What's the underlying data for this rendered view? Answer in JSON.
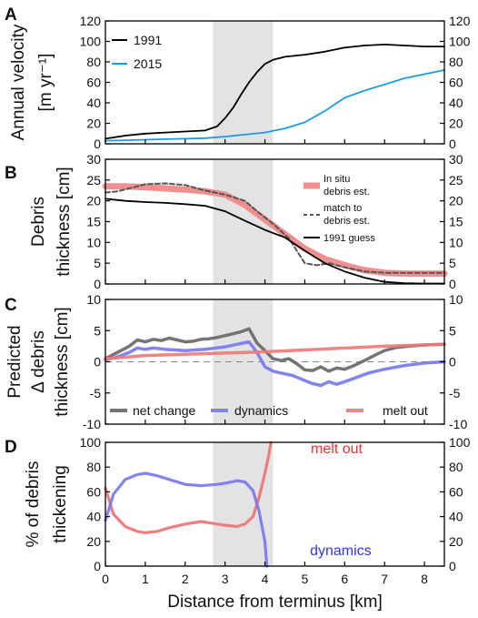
{
  "chart_data": [
    {
      "panel": "A",
      "type": "line",
      "ylabel_lines": [
        "Annual velocity",
        "[m yr⁻¹]"
      ],
      "xlim": [
        0,
        8.5
      ],
      "ylim": [
        0,
        120
      ],
      "yticks": [
        0,
        20,
        40,
        60,
        80,
        100,
        120
      ],
      "shaded_x": [
        2.7,
        4.2
      ],
      "legend_position": "top-left",
      "series": [
        {
          "name": "1991",
          "color": "#000000",
          "x": [
            0,
            0.5,
            1,
            1.5,
            2,
            2.5,
            2.8,
            3,
            3.2,
            3.4,
            3.6,
            3.8,
            4.0,
            4.2,
            4.5,
            5,
            5.5,
            6,
            6.5,
            7,
            7.5,
            8,
            8.5
          ],
          "y": [
            5,
            8,
            10,
            11,
            12,
            13,
            17,
            25,
            35,
            48,
            60,
            70,
            78,
            82,
            85,
            87,
            90,
            94,
            96,
            97,
            96,
            95,
            95
          ]
        },
        {
          "name": "2015",
          "color": "#1a9be6",
          "x": [
            0,
            0.5,
            1,
            1.5,
            2,
            2.5,
            3,
            3.5,
            4,
            4.5,
            5,
            5.5,
            6,
            6.5,
            7,
            7.5,
            8,
            8.5
          ],
          "y": [
            3,
            3.5,
            4,
            4.5,
            5,
            5.5,
            7,
            9,
            11,
            15,
            21,
            32,
            45,
            52,
            58,
            64,
            68,
            72
          ]
        }
      ]
    },
    {
      "panel": "B",
      "type": "line",
      "ylabel_lines": [
        "Debris",
        "thickness [cm]"
      ],
      "xlim": [
        0,
        8.5
      ],
      "ylim": [
        0,
        30
      ],
      "yticks": [
        0,
        5,
        10,
        15,
        20,
        25,
        30
      ],
      "shaded_x": [
        2.7,
        4.2
      ],
      "legend_position": "right",
      "series": [
        {
          "name": "In situ debris est.",
          "legend_lines": [
            "In situ",
            "debris est."
          ],
          "color": "#f08f8f",
          "style": "thick",
          "x": [
            0,
            0.5,
            1,
            1.5,
            2,
            2.5,
            3,
            3.5,
            4,
            4.5,
            5,
            5.5,
            6,
            6.5,
            7,
            7.5,
            8,
            8.5
          ],
          "y": [
            23.5,
            23.5,
            23.3,
            23,
            22.7,
            22.3,
            21.5,
            19,
            15.5,
            12,
            8.5,
            6,
            4.5,
            3.3,
            2.7,
            2.5,
            2.5,
            2.5
          ]
        },
        {
          "name": "match to debris est.",
          "legend_lines": [
            "match to",
            "debris est."
          ],
          "color": "#555555",
          "style": "dashed",
          "x": [
            0,
            0.3,
            0.6,
            1,
            1.5,
            2,
            2.5,
            3,
            3.5,
            3.8,
            4.2,
            4.6,
            5,
            5.3,
            5.6,
            6,
            6.5,
            7,
            7.5,
            8,
            8.5
          ],
          "y": [
            22,
            22.3,
            23,
            24,
            24.2,
            23.8,
            22.5,
            21.5,
            20,
            17.5,
            14.5,
            11,
            5,
            4.5,
            5,
            4,
            3,
            2.7,
            2.7,
            2.7,
            2.7
          ]
        },
        {
          "name": "1991 guess",
          "legend_lines": [
            "1991 guess"
          ],
          "color": "#000000",
          "style": "solid",
          "x": [
            0,
            0.5,
            1,
            1.5,
            2,
            2.5,
            3,
            3.5,
            4,
            4.5,
            5,
            5.5,
            6,
            6.5,
            7,
            7.5,
            8,
            8.5
          ],
          "y": [
            20.5,
            20,
            19.7,
            19.5,
            19.2,
            18.8,
            17.5,
            15.2,
            13,
            11.2,
            8,
            5,
            3,
            1.5,
            0.5,
            0.2,
            0.1,
            0.1
          ]
        }
      ]
    },
    {
      "panel": "C",
      "type": "line",
      "ylabel_lines": [
        "Predicted",
        "Δ debris",
        "thickness [cm]"
      ],
      "xlim": [
        0,
        8.5
      ],
      "ylim": [
        -10,
        10
      ],
      "yticks": [
        -10,
        -5,
        0,
        5,
        10
      ],
      "shaded_x": [
        2.7,
        4.2
      ],
      "legend_position": "bottom",
      "series": [
        {
          "name": "net change",
          "color": "#666666",
          "x": [
            0,
            0.3,
            0.6,
            0.8,
            1.0,
            1.2,
            1.4,
            1.6,
            1.8,
            2.0,
            2.2,
            2.4,
            2.6,
            2.8,
            3.0,
            3.2,
            3.4,
            3.6,
            3.8,
            4.0,
            4.2,
            4.4,
            4.6,
            4.8,
            5.0,
            5.2,
            5.4,
            5.6,
            5.8,
            6.0,
            6.2,
            6.5,
            6.8,
            7.0,
            7.3,
            7.6,
            8.0,
            8.5
          ],
          "y": [
            0.5,
            1.5,
            2.5,
            3.5,
            3.2,
            3.6,
            3.4,
            3.8,
            3.5,
            3.2,
            3.3,
            3.6,
            3.7,
            3.9,
            4.2,
            4.5,
            4.8,
            5.3,
            3.0,
            1.8,
            0.5,
            0.2,
            0.5,
            -0.3,
            -1.3,
            -1.4,
            -0.8,
            -1.5,
            -1.0,
            -1.2,
            -0.7,
            0.2,
            1.2,
            1.8,
            2.3,
            2.5,
            2.7,
            2.8
          ]
        },
        {
          "name": "dynamics",
          "color": "#7777ee",
          "x": [
            0,
            0.3,
            0.6,
            0.8,
            1.0,
            1.2,
            1.5,
            2.0,
            2.5,
            3.0,
            3.3,
            3.6,
            3.8,
            4.0,
            4.2,
            4.4,
            4.7,
            5.0,
            5.2,
            5.4,
            5.6,
            5.8,
            6.0,
            6.3,
            6.6,
            7.0,
            7.5,
            8.0,
            8.5
          ],
          "y": [
            0.3,
            0.8,
            1.5,
            2.2,
            2.0,
            2.2,
            2.0,
            1.8,
            2.0,
            2.4,
            2.8,
            3.2,
            1.5,
            -0.8,
            -1.5,
            -1.8,
            -2.2,
            -3.0,
            -3.5,
            -3.8,
            -3.2,
            -3.6,
            -3.2,
            -2.5,
            -1.8,
            -1.2,
            -0.6,
            -0.2,
            0.0
          ]
        },
        {
          "name": "melt out",
          "color": "#f07878",
          "x": [
            0,
            1,
            2,
            3,
            4,
            5,
            6,
            7,
            8,
            8.5
          ],
          "y": [
            0.5,
            1.0,
            1.2,
            1.4,
            1.6,
            1.9,
            2.2,
            2.5,
            2.7,
            2.8
          ]
        }
      ],
      "zero_line": "dashed"
    },
    {
      "panel": "D",
      "type": "line",
      "xlabel": "Distance from terminus [km]",
      "ylabel_lines": [
        "% of debris",
        "thickening"
      ],
      "xlim": [
        0,
        8.5
      ],
      "ylim": [
        0,
        100
      ],
      "yticks": [
        0,
        20,
        40,
        60,
        80,
        100
      ],
      "xticks": [
        0,
        1,
        2,
        3,
        4,
        5,
        6,
        7,
        8
      ],
      "shaded_x": [
        2.7,
        4.2
      ],
      "annotations": [
        {
          "text": "melt out",
          "color": "#ee3333",
          "x": 5.8,
          "y": 91
        },
        {
          "text": "dynamics",
          "color": "#3333ee",
          "x": 5.9,
          "y": 9
        }
      ],
      "series": [
        {
          "name": "melt out",
          "color": "#f07070",
          "x": [
            0,
            0.2,
            0.5,
            0.8,
            1.0,
            1.3,
            1.6,
            2.0,
            2.4,
            2.8,
            3.0,
            3.3,
            3.5,
            3.7,
            3.85,
            4.0,
            4.1,
            4.15
          ],
          "y": [
            63,
            42,
            32,
            28,
            27,
            28,
            31,
            34,
            36,
            34,
            33,
            32,
            34,
            40,
            55,
            75,
            90,
            100
          ]
        },
        {
          "name": "dynamics",
          "color": "#7777ee",
          "x": [
            0,
            0.2,
            0.5,
            0.8,
            1.0,
            1.3,
            1.6,
            2.0,
            2.4,
            2.8,
            3.0,
            3.3,
            3.5,
            3.7,
            3.85,
            4.0,
            4.05
          ],
          "y": [
            37,
            58,
            70,
            74,
            75,
            73,
            70,
            66,
            65,
            66,
            67,
            69,
            68,
            61,
            45,
            20,
            0
          ]
        }
      ]
    }
  ]
}
